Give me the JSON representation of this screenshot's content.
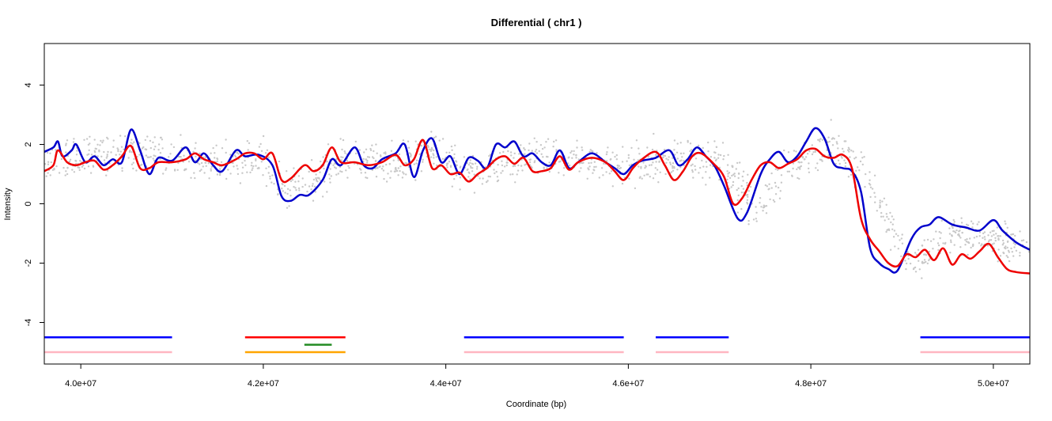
{
  "chart_data": {
    "type": "line",
    "title": "Differential ( chr1 )",
    "xlabel": "Coordinate (bp)",
    "ylabel": "Intensity",
    "xlim": [
      39600000,
      50400000
    ],
    "ylim": [
      -5.4,
      5.4
    ],
    "x_ticks": [
      40000000,
      42000000,
      44000000,
      46000000,
      48000000,
      50000000
    ],
    "x_tick_labels": [
      "4.0e+07",
      "4.2e+07",
      "4.4e+07",
      "4.6e+07",
      "4.8e+07",
      "5.0e+07"
    ],
    "y_ticks": [
      4,
      2,
      0,
      -2,
      -4
    ],
    "y_tick_labels": [
      "4",
      "2",
      "0",
      "-2",
      "-4"
    ],
    "grid": false,
    "colors": {
      "points": "#c8c8c8",
      "blue_line": "#0000cc",
      "red_line": "#ee0000",
      "segment_blue": "#0000ff",
      "segment_pink": "#ffb6c1",
      "segment_red": "#ff0000",
      "segment_green": "#228b22",
      "segment_orange": "#ffa500"
    },
    "scatter_band": [
      [
        39600000,
        1.3
      ],
      [
        40000000,
        1.5
      ],
      [
        40500000,
        1.8
      ],
      [
        41000000,
        1.6
      ],
      [
        41500000,
        1.4
      ],
      [
        42000000,
        1.5
      ],
      [
        42200000,
        0.5
      ],
      [
        42500000,
        0.6
      ],
      [
        42800000,
        1.5
      ],
      [
        43500000,
        1.4
      ],
      [
        43900000,
        1.8
      ],
      [
        44200000,
        1.1
      ],
      [
        44600000,
        1.2
      ],
      [
        45000000,
        1.6
      ],
      [
        45500000,
        1.4
      ],
      [
        46000000,
        1.3
      ],
      [
        46500000,
        1.5
      ],
      [
        47000000,
        1.5
      ],
      [
        47400000,
        -0.2
      ],
      [
        47800000,
        1.4
      ],
      [
        48200000,
        2.0
      ],
      [
        48600000,
        1.0
      ],
      [
        49000000,
        -1.6
      ],
      [
        49200000,
        -2.0
      ],
      [
        49500000,
        -1.0
      ],
      [
        50000000,
        -1.2
      ],
      [
        50400000,
        -1.6
      ]
    ],
    "series": [
      {
        "color": "#0000cc",
        "points": [
          [
            39600000,
            1.75
          ],
          [
            39700000,
            1.9
          ],
          [
            39750000,
            2.1
          ],
          [
            39800000,
            1.6
          ],
          [
            39900000,
            1.8
          ],
          [
            39950000,
            2.0
          ],
          [
            40050000,
            1.4
          ],
          [
            40150000,
            1.6
          ],
          [
            40250000,
            1.3
          ],
          [
            40350000,
            1.5
          ],
          [
            40450000,
            1.4
          ],
          [
            40550000,
            2.5
          ],
          [
            40650000,
            1.8
          ],
          [
            40750000,
            1.0
          ],
          [
            40850000,
            1.55
          ],
          [
            41000000,
            1.45
          ],
          [
            41150000,
            1.9
          ],
          [
            41250000,
            1.4
          ],
          [
            41350000,
            1.7
          ],
          [
            41450000,
            1.3
          ],
          [
            41550000,
            1.1
          ],
          [
            41700000,
            1.8
          ],
          [
            41800000,
            1.6
          ],
          [
            41950000,
            1.65
          ],
          [
            42100000,
            1.3
          ],
          [
            42200000,
            0.25
          ],
          [
            42300000,
            0.1
          ],
          [
            42400000,
            0.3
          ],
          [
            42500000,
            0.3
          ],
          [
            42650000,
            0.8
          ],
          [
            42750000,
            1.5
          ],
          [
            42850000,
            1.3
          ],
          [
            43000000,
            1.9
          ],
          [
            43100000,
            1.3
          ],
          [
            43200000,
            1.2
          ],
          [
            43300000,
            1.5
          ],
          [
            43450000,
            1.7
          ],
          [
            43550000,
            2.0
          ],
          [
            43650000,
            0.9
          ],
          [
            43750000,
            1.8
          ],
          [
            43850000,
            2.2
          ],
          [
            43950000,
            1.4
          ],
          [
            44050000,
            1.6
          ],
          [
            44150000,
            1.0
          ],
          [
            44250000,
            1.55
          ],
          [
            44350000,
            1.45
          ],
          [
            44450000,
            1.2
          ],
          [
            44550000,
            2.0
          ],
          [
            44650000,
            1.9
          ],
          [
            44750000,
            2.1
          ],
          [
            44850000,
            1.6
          ],
          [
            44950000,
            1.7
          ],
          [
            45050000,
            1.4
          ],
          [
            45150000,
            1.3
          ],
          [
            45250000,
            1.8
          ],
          [
            45350000,
            1.2
          ],
          [
            45450000,
            1.4
          ],
          [
            45600000,
            1.7
          ],
          [
            45750000,
            1.4
          ],
          [
            45850000,
            1.2
          ],
          [
            45950000,
            1.0
          ],
          [
            46050000,
            1.3
          ],
          [
            46150000,
            1.45
          ],
          [
            46300000,
            1.55
          ],
          [
            46450000,
            1.8
          ],
          [
            46550000,
            1.3
          ],
          [
            46650000,
            1.5
          ],
          [
            46750000,
            1.9
          ],
          [
            46850000,
            1.6
          ],
          [
            46950000,
            1.25
          ],
          [
            47050000,
            0.6
          ],
          [
            47200000,
            -0.5
          ],
          [
            47300000,
            -0.3
          ],
          [
            47450000,
            1.0
          ],
          [
            47550000,
            1.5
          ],
          [
            47650000,
            1.75
          ],
          [
            47750000,
            1.4
          ],
          [
            47850000,
            1.6
          ],
          [
            47950000,
            2.1
          ],
          [
            48050000,
            2.55
          ],
          [
            48150000,
            2.2
          ],
          [
            48250000,
            1.35
          ],
          [
            48350000,
            1.2
          ],
          [
            48450000,
            1.1
          ],
          [
            48550000,
            0.4
          ],
          [
            48650000,
            -1.5
          ],
          [
            48750000,
            -2.0
          ],
          [
            48850000,
            -2.2
          ],
          [
            48950000,
            -2.25
          ],
          [
            49100000,
            -1.2
          ],
          [
            49200000,
            -0.8
          ],
          [
            49300000,
            -0.7
          ],
          [
            49400000,
            -0.45
          ],
          [
            49550000,
            -0.7
          ],
          [
            49700000,
            -0.8
          ],
          [
            49850000,
            -0.9
          ],
          [
            50000000,
            -0.55
          ],
          [
            50100000,
            -0.9
          ],
          [
            50250000,
            -1.3
          ],
          [
            50400000,
            -1.55
          ]
        ]
      },
      {
        "color": "#ee0000",
        "points": [
          [
            39600000,
            1.1
          ],
          [
            39700000,
            1.3
          ],
          [
            39750000,
            1.8
          ],
          [
            39850000,
            1.4
          ],
          [
            39950000,
            1.3
          ],
          [
            40050000,
            1.4
          ],
          [
            40150000,
            1.45
          ],
          [
            40250000,
            1.15
          ],
          [
            40350000,
            1.3
          ],
          [
            40450000,
            1.6
          ],
          [
            40550000,
            1.95
          ],
          [
            40650000,
            1.2
          ],
          [
            40750000,
            1.2
          ],
          [
            40850000,
            1.4
          ],
          [
            41000000,
            1.4
          ],
          [
            41150000,
            1.5
          ],
          [
            41250000,
            1.7
          ],
          [
            41350000,
            1.5
          ],
          [
            41450000,
            1.4
          ],
          [
            41550000,
            1.3
          ],
          [
            41700000,
            1.5
          ],
          [
            41800000,
            1.7
          ],
          [
            41900000,
            1.7
          ],
          [
            42000000,
            1.5
          ],
          [
            42100000,
            1.7
          ],
          [
            42200000,
            0.8
          ],
          [
            42300000,
            0.85
          ],
          [
            42450000,
            1.3
          ],
          [
            42550000,
            1.1
          ],
          [
            42650000,
            1.3
          ],
          [
            42750000,
            1.9
          ],
          [
            42850000,
            1.4
          ],
          [
            43000000,
            1.4
          ],
          [
            43150000,
            1.3
          ],
          [
            43300000,
            1.4
          ],
          [
            43450000,
            1.65
          ],
          [
            43550000,
            1.3
          ],
          [
            43650000,
            1.5
          ],
          [
            43750000,
            2.15
          ],
          [
            43850000,
            1.2
          ],
          [
            43950000,
            1.3
          ],
          [
            44050000,
            1.0
          ],
          [
            44150000,
            1.05
          ],
          [
            44250000,
            0.75
          ],
          [
            44350000,
            1.0
          ],
          [
            44450000,
            1.2
          ],
          [
            44550000,
            1.5
          ],
          [
            44650000,
            1.6
          ],
          [
            44750000,
            1.35
          ],
          [
            44850000,
            1.55
          ],
          [
            44950000,
            1.1
          ],
          [
            45050000,
            1.1
          ],
          [
            45150000,
            1.2
          ],
          [
            45250000,
            1.6
          ],
          [
            45350000,
            1.15
          ],
          [
            45450000,
            1.4
          ],
          [
            45600000,
            1.55
          ],
          [
            45750000,
            1.4
          ],
          [
            45850000,
            1.1
          ],
          [
            45950000,
            0.8
          ],
          [
            46050000,
            1.2
          ],
          [
            46150000,
            1.5
          ],
          [
            46300000,
            1.75
          ],
          [
            46400000,
            1.3
          ],
          [
            46500000,
            0.8
          ],
          [
            46600000,
            1.1
          ],
          [
            46700000,
            1.6
          ],
          [
            46800000,
            1.7
          ],
          [
            46950000,
            1.3
          ],
          [
            47050000,
            0.9
          ],
          [
            47150000,
            0.0
          ],
          [
            47250000,
            0.2
          ],
          [
            47350000,
            0.8
          ],
          [
            47450000,
            1.3
          ],
          [
            47550000,
            1.4
          ],
          [
            47650000,
            1.2
          ],
          [
            47750000,
            1.35
          ],
          [
            47850000,
            1.5
          ],
          [
            47950000,
            1.8
          ],
          [
            48050000,
            1.85
          ],
          [
            48150000,
            1.6
          ],
          [
            48250000,
            1.55
          ],
          [
            48350000,
            1.65
          ],
          [
            48450000,
            1.2
          ],
          [
            48550000,
            -0.5
          ],
          [
            48650000,
            -1.2
          ],
          [
            48750000,
            -1.6
          ],
          [
            48850000,
            -2.0
          ],
          [
            48950000,
            -2.1
          ],
          [
            49050000,
            -1.7
          ],
          [
            49150000,
            -1.8
          ],
          [
            49250000,
            -1.55
          ],
          [
            49350000,
            -1.9
          ],
          [
            49450000,
            -1.5
          ],
          [
            49550000,
            -2.05
          ],
          [
            49650000,
            -1.7
          ],
          [
            49750000,
            -1.85
          ],
          [
            49850000,
            -1.6
          ],
          [
            49950000,
            -1.35
          ],
          [
            50050000,
            -1.8
          ],
          [
            50150000,
            -2.2
          ],
          [
            50250000,
            -2.3
          ],
          [
            50400000,
            -2.35
          ]
        ]
      }
    ],
    "segments": [
      {
        "color": "#0000ff",
        "y": -4.5,
        "x0": 39600000,
        "x1": 41000000
      },
      {
        "color": "#ffb6c1",
        "y": -5.0,
        "x0": 39600000,
        "x1": 41000000
      },
      {
        "color": "#ff0000",
        "y": -4.5,
        "x0": 41800000,
        "x1": 42900000
      },
      {
        "color": "#228b22",
        "y": -4.75,
        "x0": 42450000,
        "x1": 42750000
      },
      {
        "color": "#ffa500",
        "y": -5.0,
        "x0": 41800000,
        "x1": 42900000
      },
      {
        "color": "#0000ff",
        "y": -4.5,
        "x0": 44200000,
        "x1": 45950000
      },
      {
        "color": "#ffb6c1",
        "y": -5.0,
        "x0": 44200000,
        "x1": 45950000
      },
      {
        "color": "#0000ff",
        "y": -4.5,
        "x0": 46300000,
        "x1": 47100000
      },
      {
        "color": "#ffb6c1",
        "y": -5.0,
        "x0": 46300000,
        "x1": 47100000
      },
      {
        "color": "#0000ff",
        "y": -4.5,
        "x0": 49200000,
        "x1": 50400000
      },
      {
        "color": "#ffb6c1",
        "y": -5.0,
        "x0": 49200000,
        "x1": 50400000
      }
    ]
  }
}
